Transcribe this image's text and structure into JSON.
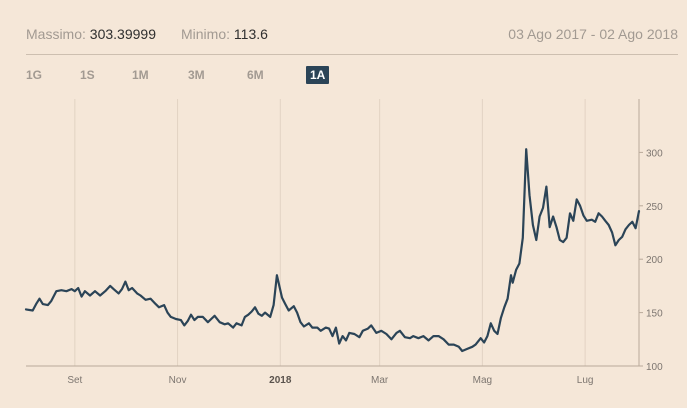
{
  "header": {
    "max_label": "Massimo:",
    "max_value": "303.39999",
    "min_label": "Minimo:",
    "min_value": "113.6",
    "date_range": "03 Ago 2017 - 02 Ago 2018"
  },
  "tabs": [
    {
      "label": "1G",
      "active": false
    },
    {
      "label": "1S",
      "active": false
    },
    {
      "label": "1M",
      "active": false
    },
    {
      "label": "3M",
      "active": false
    },
    {
      "label": "6M",
      "active": false
    },
    {
      "label": "1A",
      "active": true
    }
  ],
  "colors": {
    "background": "#f5e7d8",
    "line": "#2b4457",
    "grid": "#e2d3c3",
    "active_tab": "#2b4457"
  },
  "chart_data": {
    "type": "line",
    "title": "",
    "xlabel": "",
    "ylabel": "",
    "ylim": [
      100,
      350
    ],
    "y_ticks": [
      100,
      150,
      200,
      250,
      300
    ],
    "grid": {
      "x": true,
      "y": false
    },
    "y_axis_side": "right",
    "xlim": [
      "2017-08-03",
      "2018-08-02"
    ],
    "x_ticks": [
      {
        "date": "2017-09-01",
        "label": "Set",
        "bold": false
      },
      {
        "date": "2017-11-01",
        "label": "Nov",
        "bold": false
      },
      {
        "date": "2018-01-01",
        "label": "2018",
        "bold": true
      },
      {
        "date": "2018-03-01",
        "label": "Mar",
        "bold": false
      },
      {
        "date": "2018-05-01",
        "label": "Mag",
        "bold": false
      },
      {
        "date": "2018-07-01",
        "label": "Lug",
        "bold": false
      }
    ],
    "series": [
      {
        "points": [
          [
            "2017-08-03",
            153
          ],
          [
            "2017-08-07",
            152
          ],
          [
            "2017-08-09",
            158
          ],
          [
            "2017-08-11",
            163
          ],
          [
            "2017-08-13",
            158
          ],
          [
            "2017-08-16",
            157
          ],
          [
            "2017-08-18",
            161
          ],
          [
            "2017-08-21",
            170
          ],
          [
            "2017-08-24",
            171
          ],
          [
            "2017-08-27",
            170
          ],
          [
            "2017-08-30",
            172
          ],
          [
            "2017-09-01",
            170
          ],
          [
            "2017-09-03",
            173
          ],
          [
            "2017-09-05",
            165
          ],
          [
            "2017-09-07",
            170
          ],
          [
            "2017-09-10",
            166
          ],
          [
            "2017-09-13",
            170
          ],
          [
            "2017-09-16",
            166
          ],
          [
            "2017-09-19",
            170
          ],
          [
            "2017-09-22",
            175
          ],
          [
            "2017-09-24",
            172
          ],
          [
            "2017-09-27",
            168
          ],
          [
            "2017-09-29",
            172
          ],
          [
            "2017-10-01",
            179
          ],
          [
            "2017-10-03",
            171
          ],
          [
            "2017-10-05",
            173
          ],
          [
            "2017-10-08",
            168
          ],
          [
            "2017-10-10",
            166
          ],
          [
            "2017-10-13",
            162
          ],
          [
            "2017-10-16",
            163
          ],
          [
            "2017-10-19",
            158
          ],
          [
            "2017-10-21",
            155
          ],
          [
            "2017-10-24",
            157
          ],
          [
            "2017-10-26",
            150
          ],
          [
            "2017-10-28",
            146
          ],
          [
            "2017-10-31",
            144
          ],
          [
            "2017-11-03",
            143
          ],
          [
            "2017-11-05",
            138
          ],
          [
            "2017-11-07",
            142
          ],
          [
            "2017-11-09",
            148
          ],
          [
            "2017-11-11",
            143
          ],
          [
            "2017-11-13",
            146
          ],
          [
            "2017-11-16",
            146
          ],
          [
            "2017-11-19",
            141
          ],
          [
            "2017-11-21",
            144
          ],
          [
            "2017-11-23",
            147
          ],
          [
            "2017-11-26",
            141
          ],
          [
            "2017-11-29",
            139
          ],
          [
            "2017-12-01",
            140
          ],
          [
            "2017-12-04",
            136
          ],
          [
            "2017-12-06",
            140
          ],
          [
            "2017-12-09",
            138
          ],
          [
            "2017-12-11",
            146
          ],
          [
            "2017-12-13",
            148
          ],
          [
            "2017-12-15",
            151
          ],
          [
            "2017-12-17",
            155
          ],
          [
            "2017-12-19",
            149
          ],
          [
            "2017-12-21",
            147
          ],
          [
            "2017-12-23",
            150
          ],
          [
            "2017-12-26",
            146
          ],
          [
            "2017-12-28",
            157
          ],
          [
            "2017-12-30",
            185
          ],
          [
            "2018-01-02",
            164
          ],
          [
            "2018-01-04",
            158
          ],
          [
            "2018-01-06",
            152
          ],
          [
            "2018-01-09",
            156
          ],
          [
            "2018-01-11",
            150
          ],
          [
            "2018-01-13",
            141
          ],
          [
            "2018-01-15",
            137
          ],
          [
            "2018-01-18",
            140
          ],
          [
            "2018-01-20",
            136
          ],
          [
            "2018-01-23",
            136
          ],
          [
            "2018-01-25",
            133
          ],
          [
            "2018-01-28",
            136
          ],
          [
            "2018-01-30",
            135
          ],
          [
            "2018-02-01",
            128
          ],
          [
            "2018-02-03",
            136
          ],
          [
            "2018-02-05",
            121
          ],
          [
            "2018-02-07",
            128
          ],
          [
            "2018-02-09",
            124
          ],
          [
            "2018-02-11",
            131
          ],
          [
            "2018-02-14",
            130
          ],
          [
            "2018-02-17",
            127
          ],
          [
            "2018-02-19",
            133
          ],
          [
            "2018-02-22",
            135
          ],
          [
            "2018-02-24",
            138
          ],
          [
            "2018-02-27",
            131
          ],
          [
            "2018-03-02",
            133
          ],
          [
            "2018-03-05",
            130
          ],
          [
            "2018-03-08",
            125
          ],
          [
            "2018-03-11",
            131
          ],
          [
            "2018-03-13",
            133
          ],
          [
            "2018-03-16",
            127
          ],
          [
            "2018-03-19",
            126
          ],
          [
            "2018-03-21",
            128
          ],
          [
            "2018-03-24",
            126
          ],
          [
            "2018-03-27",
            128
          ],
          [
            "2018-03-30",
            124
          ],
          [
            "2018-04-02",
            128
          ],
          [
            "2018-04-05",
            128
          ],
          [
            "2018-04-08",
            125
          ],
          [
            "2018-04-11",
            120
          ],
          [
            "2018-04-14",
            120
          ],
          [
            "2018-04-17",
            118
          ],
          [
            "2018-04-19",
            114
          ],
          [
            "2018-04-22",
            116
          ],
          [
            "2018-04-25",
            118
          ],
          [
            "2018-04-27",
            120
          ],
          [
            "2018-04-30",
            126
          ],
          [
            "2018-05-02",
            122
          ],
          [
            "2018-05-04",
            128
          ],
          [
            "2018-05-06",
            140
          ],
          [
            "2018-05-08",
            133
          ],
          [
            "2018-05-10",
            130
          ],
          [
            "2018-05-12",
            145
          ],
          [
            "2018-05-14",
            155
          ],
          [
            "2018-05-16",
            163
          ],
          [
            "2018-05-18",
            185
          ],
          [
            "2018-05-19",
            178
          ],
          [
            "2018-05-21",
            190
          ],
          [
            "2018-05-23",
            196
          ],
          [
            "2018-05-25",
            220
          ],
          [
            "2018-05-27",
            303
          ],
          [
            "2018-05-29",
            260
          ],
          [
            "2018-05-31",
            232
          ],
          [
            "2018-06-02",
            218
          ],
          [
            "2018-06-04",
            240
          ],
          [
            "2018-06-06",
            248
          ],
          [
            "2018-06-08",
            268
          ],
          [
            "2018-06-10",
            230
          ],
          [
            "2018-06-12",
            240
          ],
          [
            "2018-06-14",
            230
          ],
          [
            "2018-06-16",
            218
          ],
          [
            "2018-06-18",
            216
          ],
          [
            "2018-06-20",
            220
          ],
          [
            "2018-06-22",
            243
          ],
          [
            "2018-06-24",
            236
          ],
          [
            "2018-06-26",
            256
          ],
          [
            "2018-06-28",
            250
          ],
          [
            "2018-06-30",
            241
          ],
          [
            "2018-07-02",
            236
          ],
          [
            "2018-07-05",
            237
          ],
          [
            "2018-07-07",
            235
          ],
          [
            "2018-07-09",
            243
          ],
          [
            "2018-07-11",
            240
          ],
          [
            "2018-07-13",
            236
          ],
          [
            "2018-07-15",
            232
          ],
          [
            "2018-07-17",
            225
          ],
          [
            "2018-07-19",
            213
          ],
          [
            "2018-07-21",
            218
          ],
          [
            "2018-07-23",
            221
          ],
          [
            "2018-07-25",
            228
          ],
          [
            "2018-07-27",
            232
          ],
          [
            "2018-07-29",
            235
          ],
          [
            "2018-07-31",
            229
          ],
          [
            "2018-08-02",
            245
          ]
        ]
      }
    ]
  }
}
